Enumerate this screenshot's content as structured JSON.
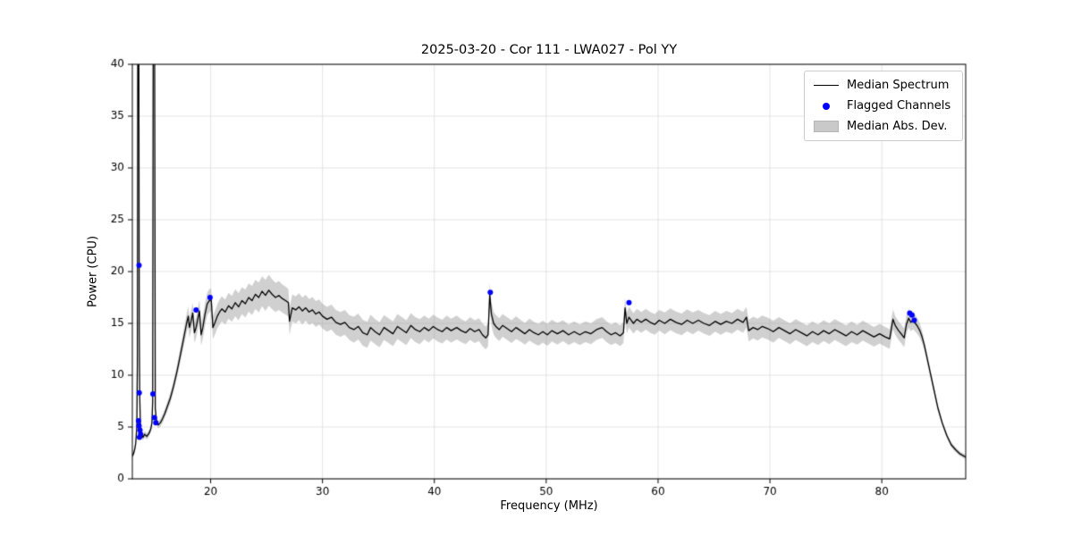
{
  "chart_data": {
    "type": "line",
    "title": "2025-03-20 - Cor 111 - LWA027 - Pol YY",
    "xlabel": "Frequency (MHz)",
    "ylabel": "Power (CPU)",
    "xlim": [
      13.0,
      87.5
    ],
    "ylim": [
      0,
      40
    ],
    "xticks": [
      20,
      30,
      40,
      50,
      60,
      70,
      80
    ],
    "yticks": [
      0,
      5,
      10,
      15,
      20,
      25,
      30,
      35,
      40
    ],
    "grid": true,
    "legend_loc": "upper right",
    "legend": [
      "Median Spectrum",
      "Flagged Channels",
      "Median Abs. Dev."
    ],
    "colors": {
      "line": "#000000",
      "flagged": "#0000ff",
      "band": "#969696",
      "grid": "#dcdcdc",
      "frame": "#000000"
    },
    "band_alpha": 0.45,
    "spectrum_format": "[frequency_mhz, median_power, median_abs_dev]",
    "spectrum": [
      [
        13.0,
        2.2,
        0.25
      ],
      [
        13.1,
        2.4,
        0.25
      ],
      [
        13.2,
        2.8,
        0.3
      ],
      [
        13.3,
        3.4,
        0.3
      ],
      [
        13.4,
        5.0,
        0.3
      ],
      [
        13.45,
        11.0,
        0.3
      ],
      [
        13.5,
        55,
        0.3
      ],
      [
        13.56,
        55,
        0.3
      ],
      [
        13.62,
        14.0,
        0.3
      ],
      [
        13.66,
        8.0,
        0.3
      ],
      [
        13.72,
        5.2,
        0.3
      ],
      [
        13.78,
        4.5,
        0.3
      ],
      [
        13.85,
        4.2,
        0.3
      ],
      [
        13.95,
        4.0,
        0.3
      ],
      [
        14.1,
        4.3,
        0.3
      ],
      [
        14.3,
        4.1,
        0.3
      ],
      [
        14.5,
        4.4,
        0.3
      ],
      [
        14.65,
        4.8,
        0.3
      ],
      [
        14.75,
        5.4,
        0.3
      ],
      [
        14.82,
        7.5,
        0.3
      ],
      [
        14.88,
        55,
        0.3
      ],
      [
        14.97,
        55,
        0.3
      ],
      [
        15.05,
        6.8,
        0.3
      ],
      [
        15.15,
        5.7,
        0.3
      ],
      [
        15.3,
        5.2,
        0.35
      ],
      [
        15.5,
        5.4,
        0.35
      ],
      [
        15.7,
        5.8,
        0.4
      ],
      [
        15.9,
        6.3,
        0.4
      ],
      [
        16.1,
        6.9,
        0.45
      ],
      [
        16.4,
        7.8,
        0.5
      ],
      [
        16.7,
        9.0,
        0.55
      ],
      [
        17.0,
        10.4,
        0.6
      ],
      [
        17.3,
        12.0,
        0.7
      ],
      [
        17.6,
        13.6,
        0.8
      ],
      [
        17.85,
        15.0,
        0.9
      ],
      [
        18.0,
        15.7,
        0.95
      ],
      [
        18.1,
        14.6,
        1.0
      ],
      [
        18.25,
        15.2,
        1.0
      ],
      [
        18.4,
        16.0,
        1.0
      ],
      [
        18.55,
        14.1,
        1.0
      ],
      [
        18.7,
        14.6,
        1.0
      ],
      [
        18.85,
        15.4,
        1.05
      ],
      [
        19.0,
        16.2,
        1.05
      ],
      [
        19.15,
        13.9,
        1.05
      ],
      [
        19.3,
        14.6,
        1.1
      ],
      [
        19.5,
        15.9,
        1.1
      ],
      [
        19.7,
        16.9,
        1.1
      ],
      [
        19.9,
        17.2,
        1.1
      ],
      [
        20.05,
        17.3,
        1.1
      ],
      [
        20.2,
        14.6,
        1.1
      ],
      [
        20.4,
        15.1,
        1.15
      ],
      [
        20.6,
        15.7,
        1.15
      ],
      [
        20.8,
        16.1,
        1.2
      ],
      [
        21.0,
        16.4,
        1.2
      ],
      [
        21.3,
        16.1,
        1.2
      ],
      [
        21.6,
        16.7,
        1.25
      ],
      [
        21.9,
        16.4,
        1.25
      ],
      [
        22.2,
        17.0,
        1.3
      ],
      [
        22.5,
        16.6,
        1.3
      ],
      [
        22.8,
        17.2,
        1.3
      ],
      [
        23.1,
        16.9,
        1.35
      ],
      [
        23.4,
        17.5,
        1.35
      ],
      [
        23.7,
        17.2,
        1.4
      ],
      [
        24.0,
        17.8,
        1.4
      ],
      [
        24.3,
        17.5,
        1.45
      ],
      [
        24.6,
        18.1,
        1.45
      ],
      [
        24.9,
        17.7,
        1.5
      ],
      [
        25.2,
        18.2,
        1.5
      ],
      [
        25.5,
        17.8,
        1.45
      ],
      [
        25.8,
        17.5,
        1.4
      ],
      [
        26.1,
        17.7,
        1.4
      ],
      [
        26.4,
        17.4,
        1.35
      ],
      [
        26.7,
        17.2,
        1.35
      ],
      [
        26.95,
        17.0,
        1.3
      ],
      [
        27.05,
        15.2,
        1.3
      ],
      [
        27.3,
        16.5,
        1.3
      ],
      [
        27.6,
        16.3,
        1.3
      ],
      [
        27.9,
        16.6,
        1.3
      ],
      [
        28.2,
        16.2,
        1.3
      ],
      [
        28.5,
        16.5,
        1.25
      ],
      [
        28.8,
        16.1,
        1.25
      ],
      [
        29.1,
        16.3,
        1.25
      ],
      [
        29.4,
        15.9,
        1.25
      ],
      [
        29.7,
        16.1,
        1.2
      ],
      [
        30.0,
        15.7,
        1.2
      ],
      [
        30.4,
        15.4,
        1.2
      ],
      [
        30.8,
        15.6,
        1.2
      ],
      [
        31.2,
        15.1,
        1.2
      ],
      [
        31.6,
        14.9,
        1.2
      ],
      [
        32.0,
        15.1,
        1.2
      ],
      [
        32.4,
        14.6,
        1.2
      ],
      [
        32.8,
        14.4,
        1.25
      ],
      [
        33.2,
        14.7,
        1.25
      ],
      [
        33.6,
        14.1,
        1.25
      ],
      [
        34.0,
        13.9,
        1.25
      ],
      [
        34.3,
        14.6,
        1.25
      ],
      [
        34.7,
        14.2,
        1.2
      ],
      [
        35.1,
        13.9,
        1.2
      ],
      [
        35.5,
        14.6,
        1.2
      ],
      [
        35.9,
        14.3,
        1.2
      ],
      [
        36.3,
        14.0,
        1.2
      ],
      [
        36.7,
        14.7,
        1.2
      ],
      [
        37.1,
        14.4,
        1.2
      ],
      [
        37.5,
        14.1,
        1.2
      ],
      [
        37.9,
        14.8,
        1.2
      ],
      [
        38.3,
        14.4,
        1.2
      ],
      [
        38.7,
        14.2,
        1.2
      ],
      [
        39.1,
        14.6,
        1.15
      ],
      [
        39.5,
        14.3,
        1.15
      ],
      [
        39.9,
        14.7,
        1.15
      ],
      [
        40.3,
        14.4,
        1.15
      ],
      [
        40.7,
        14.2,
        1.15
      ],
      [
        41.1,
        14.6,
        1.15
      ],
      [
        41.5,
        14.3,
        1.15
      ],
      [
        42.0,
        14.6,
        1.15
      ],
      [
        42.4,
        14.3,
        1.1
      ],
      [
        42.8,
        14.1,
        1.1
      ],
      [
        43.2,
        14.5,
        1.1
      ],
      [
        43.6,
        14.2,
        1.1
      ],
      [
        44.0,
        14.4,
        1.1
      ],
      [
        44.3,
        13.9,
        1.1
      ],
      [
        44.6,
        13.6,
        1.1
      ],
      [
        44.8,
        13.9,
        1.1
      ],
      [
        44.95,
        17.8,
        1.1
      ],
      [
        45.1,
        15.9,
        1.1
      ],
      [
        45.3,
        15.0,
        1.1
      ],
      [
        45.5,
        14.7,
        1.1
      ],
      [
        45.8,
        14.4,
        1.1
      ],
      [
        46.1,
        14.8,
        1.1
      ],
      [
        46.5,
        14.5,
        1.1
      ],
      [
        46.9,
        14.2,
        1.1
      ],
      [
        47.3,
        14.6,
        1.1
      ],
      [
        47.7,
        14.3,
        1.05
      ],
      [
        48.1,
        14.0,
        1.05
      ],
      [
        48.5,
        14.4,
        1.05
      ],
      [
        48.9,
        14.1,
        1.05
      ],
      [
        49.3,
        13.9,
        1.05
      ],
      [
        49.7,
        14.2,
        1.05
      ],
      [
        50.1,
        13.9,
        1.05
      ],
      [
        50.5,
        14.3,
        1.05
      ],
      [
        51.0,
        14.0,
        1.05
      ],
      [
        51.5,
        14.3,
        1.0
      ],
      [
        52.0,
        13.9,
        1.0
      ],
      [
        52.5,
        14.2,
        1.0
      ],
      [
        53.0,
        13.9,
        1.0
      ],
      [
        53.5,
        14.2,
        1.0
      ],
      [
        54.0,
        14.0,
        1.0
      ],
      [
        54.5,
        14.4,
        1.0
      ],
      [
        55.0,
        14.6,
        1.0
      ],
      [
        55.4,
        14.2,
        1.0
      ],
      [
        55.8,
        13.9,
        1.0
      ],
      [
        56.2,
        14.1,
        1.0
      ],
      [
        56.6,
        13.8,
        1.0
      ],
      [
        56.9,
        14.1,
        1.0
      ],
      [
        57.05,
        16.5,
        1.0
      ],
      [
        57.2,
        15.0,
        1.0
      ],
      [
        57.4,
        15.6,
        1.0
      ],
      [
        57.6,
        15.3,
        1.0
      ],
      [
        57.8,
        15.0,
        1.0
      ],
      [
        58.1,
        15.4,
        1.0
      ],
      [
        58.5,
        15.1,
        1.0
      ],
      [
        58.9,
        15.4,
        1.0
      ],
      [
        59.3,
        15.1,
        1.0
      ],
      [
        59.7,
        14.9,
        1.0
      ],
      [
        60.1,
        15.3,
        1.0
      ],
      [
        60.6,
        15.0,
        1.05
      ],
      [
        61.1,
        15.4,
        1.05
      ],
      [
        61.6,
        15.1,
        1.05
      ],
      [
        62.1,
        14.9,
        1.05
      ],
      [
        62.6,
        15.3,
        1.05
      ],
      [
        63.1,
        15.0,
        1.05
      ],
      [
        63.6,
        15.3,
        1.0
      ],
      [
        64.1,
        15.0,
        1.0
      ],
      [
        64.6,
        14.8,
        1.0
      ],
      [
        65.1,
        15.2,
        1.0
      ],
      [
        65.6,
        14.9,
        1.0
      ],
      [
        66.1,
        15.2,
        1.0
      ],
      [
        66.6,
        15.0,
        1.0
      ],
      [
        67.1,
        15.4,
        1.0
      ],
      [
        67.6,
        15.1,
        1.0
      ],
      [
        67.9,
        15.6,
        1.0
      ],
      [
        68.1,
        14.3,
        1.05
      ],
      [
        68.5,
        14.6,
        1.05
      ],
      [
        68.9,
        14.4,
        1.05
      ],
      [
        69.3,
        14.7,
        1.05
      ],
      [
        69.8,
        14.5,
        1.05
      ],
      [
        70.3,
        14.2,
        1.05
      ],
      [
        70.8,
        14.6,
        1.0
      ],
      [
        71.3,
        14.3,
        1.0
      ],
      [
        71.8,
        14.0,
        1.0
      ],
      [
        72.3,
        14.4,
        1.0
      ],
      [
        72.8,
        14.1,
        1.0
      ],
      [
        73.3,
        13.8,
        1.0
      ],
      [
        73.8,
        14.2,
        1.0
      ],
      [
        74.3,
        13.9,
        1.0
      ],
      [
        74.8,
        14.3,
        1.0
      ],
      [
        75.3,
        14.0,
        1.0
      ],
      [
        75.8,
        14.4,
        1.0
      ],
      [
        76.3,
        14.1,
        1.0
      ],
      [
        76.8,
        13.8,
        1.0
      ],
      [
        77.3,
        14.2,
        1.0
      ],
      [
        77.8,
        13.9,
        0.95
      ],
      [
        78.3,
        14.3,
        0.95
      ],
      [
        78.8,
        14.0,
        0.95
      ],
      [
        79.3,
        13.7,
        0.95
      ],
      [
        79.8,
        14.0,
        0.95
      ],
      [
        80.3,
        13.7,
        0.95
      ],
      [
        80.7,
        13.5,
        0.95
      ],
      [
        81.0,
        15.4,
        0.95
      ],
      [
        81.2,
        14.8,
        0.9
      ],
      [
        81.5,
        14.3,
        0.9
      ],
      [
        81.8,
        13.9,
        0.9
      ],
      [
        82.0,
        13.6,
        0.9
      ],
      [
        82.2,
        14.9,
        0.9
      ],
      [
        82.4,
        15.5,
        0.9
      ],
      [
        82.6,
        15.1,
        0.85
      ],
      [
        82.8,
        15.3,
        0.85
      ],
      [
        83.0,
        15.0,
        0.8
      ],
      [
        83.2,
        14.7,
        0.75
      ],
      [
        83.4,
        14.3,
        0.7
      ],
      [
        83.6,
        13.7,
        0.6
      ],
      [
        83.8,
        12.9,
        0.5
      ],
      [
        84.0,
        11.9,
        0.45
      ],
      [
        84.3,
        10.4,
        0.4
      ],
      [
        84.6,
        8.9,
        0.35
      ],
      [
        85.0,
        6.9,
        0.3
      ],
      [
        85.4,
        5.4,
        0.28
      ],
      [
        85.8,
        4.2,
        0.26
      ],
      [
        86.2,
        3.3,
        0.25
      ],
      [
        86.6,
        2.8,
        0.24
      ],
      [
        87.0,
        2.4,
        0.23
      ],
      [
        87.5,
        2.1,
        0.22
      ]
    ],
    "flagged_format": "[frequency_mhz, power]",
    "flagged_channels": [
      [
        13.6,
        20.6
      ],
      [
        13.62,
        8.3
      ],
      [
        14.84,
        8.2
      ],
      [
        13.55,
        5.6
      ],
      [
        13.6,
        5.1
      ],
      [
        13.68,
        4.7
      ],
      [
        13.74,
        4.3
      ],
      [
        13.64,
        4.0
      ],
      [
        14.97,
        5.9
      ],
      [
        15.1,
        5.4
      ],
      [
        18.7,
        16.3
      ],
      [
        19.95,
        17.5
      ],
      [
        45.0,
        18.0
      ],
      [
        57.4,
        17.0
      ],
      [
        82.5,
        16.0
      ],
      [
        82.7,
        15.8
      ],
      [
        82.9,
        15.3
      ]
    ]
  }
}
